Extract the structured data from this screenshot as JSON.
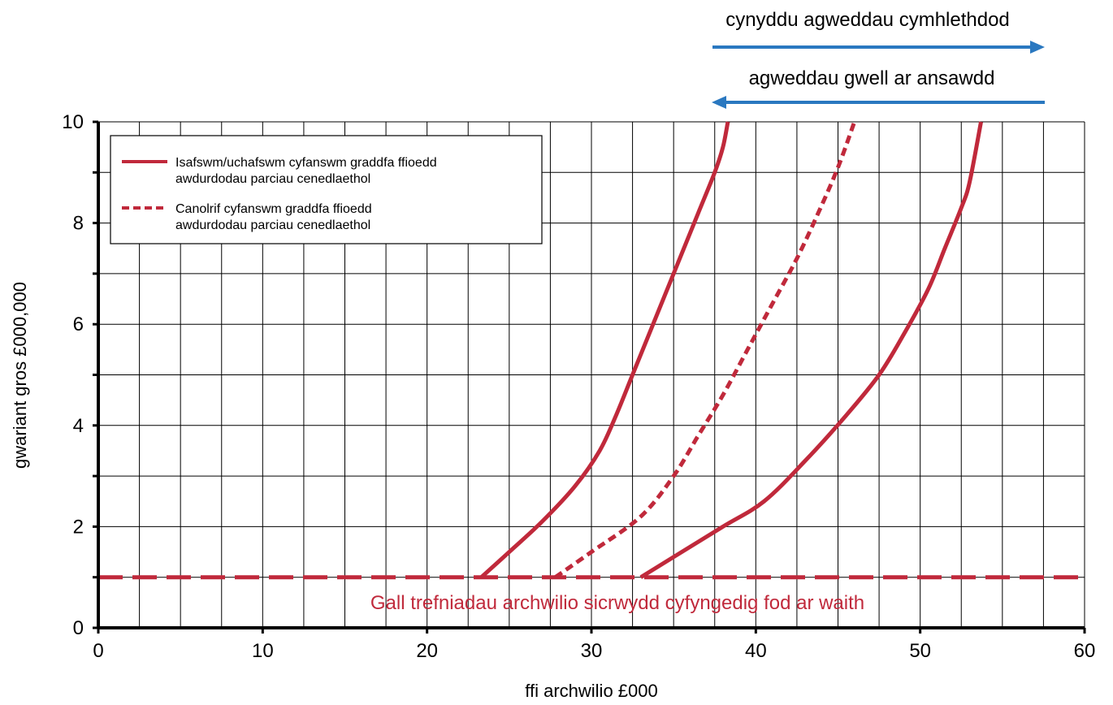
{
  "chart_data": {
    "type": "line",
    "title": "",
    "xlabel": "ffi archwilio £000",
    "ylabel": "gwariant gros £000,000",
    "xlim": [
      0,
      60
    ],
    "ylim": [
      0,
      10
    ],
    "x_ticks": [
      "0",
      "10",
      "20",
      "30",
      "40",
      "50",
      "60"
    ],
    "y_ticks": [
      "0",
      "2",
      "4",
      "6",
      "8",
      "10"
    ],
    "grid": true,
    "legend_position": "top-left",
    "legend": [
      {
        "label_lines": [
          "Isafswm/uchafswm cyfanswm graddfa ffioedd",
          "awdurdodau parciau cenedlaethol"
        ],
        "style": "solid"
      },
      {
        "label_lines": [
          "Canolrif cyfanswm graddfa ffioedd",
          "awdurdodau parciau cenedlaethol"
        ],
        "style": "dashed"
      }
    ],
    "series": [
      {
        "style": "solid",
        "color": "#c0293b",
        "points": [
          [
            23.3,
            1.0
          ],
          [
            25.0,
            1.5
          ],
          [
            27.0,
            2.1
          ],
          [
            29.0,
            2.8
          ],
          [
            30.5,
            3.5
          ],
          [
            31.5,
            4.2
          ],
          [
            32.5,
            5.0
          ],
          [
            33.5,
            5.8
          ],
          [
            34.5,
            6.6
          ],
          [
            35.5,
            7.4
          ],
          [
            36.5,
            8.2
          ],
          [
            37.5,
            9.0
          ],
          [
            38.0,
            9.5
          ],
          [
            38.3,
            10.0
          ]
        ]
      },
      {
        "style": "dashed",
        "color": "#c0293b",
        "points": [
          [
            27.8,
            1.0
          ],
          [
            30.0,
            1.5
          ],
          [
            33.0,
            2.2
          ],
          [
            35.0,
            3.0
          ],
          [
            36.5,
            3.8
          ],
          [
            38.0,
            4.6
          ],
          [
            39.5,
            5.5
          ],
          [
            41.0,
            6.4
          ],
          [
            42.5,
            7.3
          ],
          [
            43.8,
            8.2
          ],
          [
            45.0,
            9.1
          ],
          [
            46.0,
            10.0
          ]
        ]
      },
      {
        "style": "solid",
        "color": "#c0293b",
        "points": [
          [
            33.0,
            1.0
          ],
          [
            35.0,
            1.4
          ],
          [
            38.0,
            2.0
          ],
          [
            40.5,
            2.5
          ],
          [
            43.0,
            3.3
          ],
          [
            45.5,
            4.2
          ],
          [
            47.5,
            5.0
          ],
          [
            49.0,
            5.8
          ],
          [
            50.5,
            6.7
          ],
          [
            51.5,
            7.5
          ],
          [
            52.5,
            8.3
          ],
          [
            53.0,
            8.8
          ],
          [
            53.7,
            10.0
          ]
        ]
      },
      {
        "style": "long-dash",
        "color": "#c0293b",
        "points": [
          [
            0,
            1.0
          ],
          [
            60,
            1.0
          ]
        ]
      }
    ],
    "annotations": {
      "threshold_text": "Gall trefniadau archwilio sicrwydd cyfyngedig fod ar waith",
      "arrow_right_text": "cynyddu agweddau cymhlethdod",
      "arrow_left_text": "agweddau gwell ar ansawdd",
      "arrow_color": "#2a78c0"
    }
  }
}
